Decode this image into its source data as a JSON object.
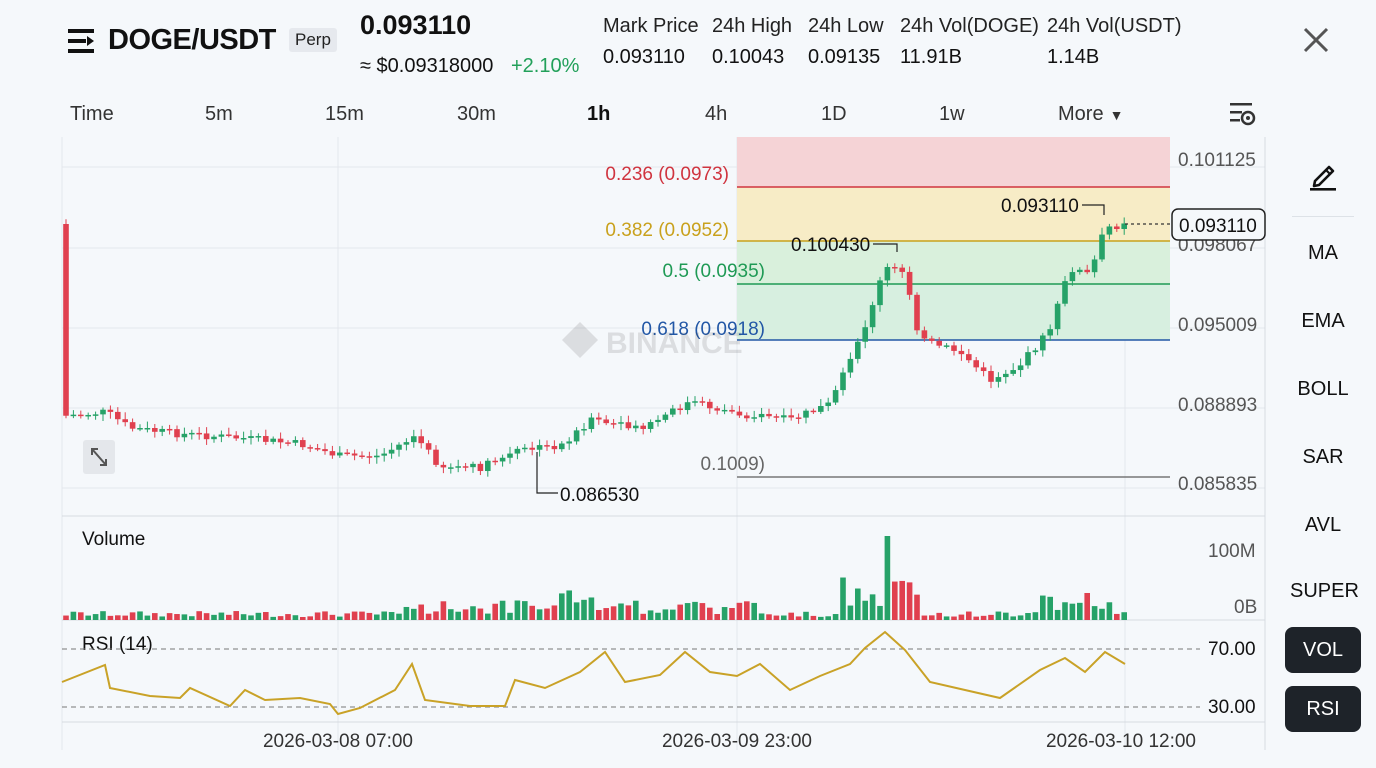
{
  "header": {
    "symbol": "DOGE/USDT",
    "badge": "Perp",
    "last_price": "0.093110",
    "usd_price": "≈ $0.09318000",
    "change": "+2.10%",
    "stats": [
      {
        "label": "Mark Price",
        "value": "0.093110"
      },
      {
        "label": "24h High",
        "value": "0.10043"
      },
      {
        "label": "24h Low",
        "value": "0.09135"
      },
      {
        "label": "24h Vol(DOGE)",
        "value": "11.91B"
      },
      {
        "label": "24h Vol(USDT)",
        "value": "1.14B"
      }
    ]
  },
  "intervals": [
    "Time",
    "5m",
    "15m",
    "30m",
    "1h",
    "4h",
    "1D",
    "1w",
    "More"
  ],
  "active_interval": "1h",
  "price_axis": [
    "0.101125",
    "0.098067",
    "0.095009",
    "0.088893",
    "0.085835"
  ],
  "current_price_tag": "0.093110",
  "fib_levels": [
    {
      "label": "0.236 (0.0973)",
      "color": "#d0343f"
    },
    {
      "label": "0.382 (0.0952)",
      "color": "#c9a11c"
    },
    {
      "label": "0.5 (0.0935)",
      "color": "#1f9a55"
    },
    {
      "label": "0.618 (0.0918)",
      "color": "#2257a6"
    },
    {
      "label": "0.1009)",
      "color": "#666666"
    }
  ],
  "annotations": {
    "high": "0.100430",
    "low": "0.086530",
    "last": "0.093110"
  },
  "watermark": "BINANCE",
  "volume_panel": {
    "title": "Volume",
    "axis": [
      "100M",
      "0B"
    ]
  },
  "rsi_panel": {
    "title": "RSI (14)",
    "axis": [
      "70.00",
      "30.00"
    ]
  },
  "time_axis": [
    "2026-03-08 07:00",
    "2026-03-09 23:00",
    "2026-03-10 12:00"
  ],
  "sidebar": [
    "MA",
    "EMA",
    "BOLL",
    "SAR",
    "AVL",
    "SUPER",
    "VOL",
    "RSI"
  ],
  "colors": {
    "up": "#26a268",
    "down": "#e0404f",
    "rsi": "#c9a227"
  }
}
